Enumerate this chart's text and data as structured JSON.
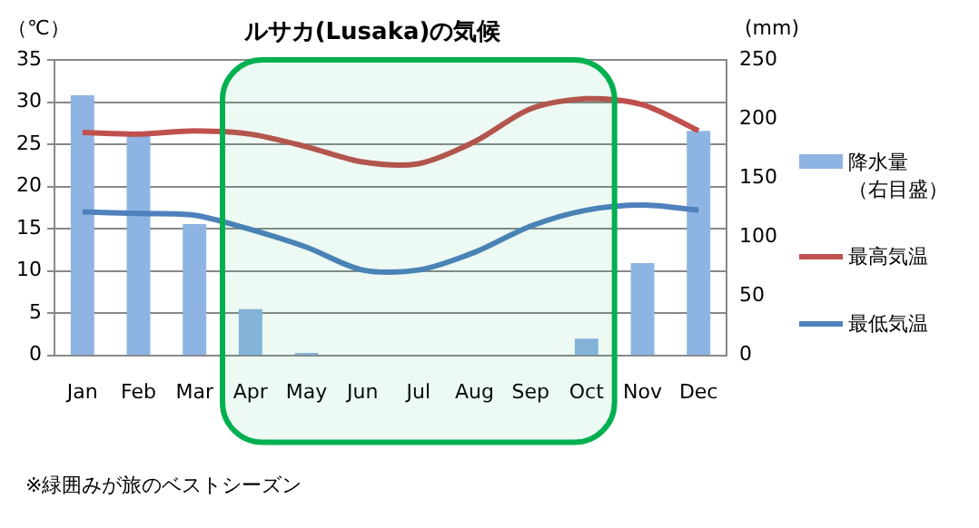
{
  "chart_data": {
    "type": "bar",
    "title": "ルサカ(Lusaka)の気候",
    "ylabel": "（℃）",
    "y2label": "(mm)",
    "categories": [
      "Jan",
      "Feb",
      "Mar",
      "Apr",
      "May",
      "Jun",
      "Jul",
      "Aug",
      "Sep",
      "Oct",
      "Nov",
      "Dec"
    ],
    "series": [
      {
        "name": "降水量（右目盛）",
        "axis": "y2",
        "color": "#8eb4e3",
        "values": [
          220,
          186,
          111,
          39,
          2,
          0,
          0,
          0,
          0,
          14,
          78,
          190
        ]
      },
      {
        "name": "最高気温",
        "type": "line",
        "color": "#c0504d",
        "values": [
          26.4,
          26.2,
          26.6,
          26.2,
          24.7,
          22.9,
          22.7,
          25.3,
          29.2,
          30.4,
          29.7,
          26.6
        ]
      },
      {
        "name": "最低気温",
        "type": "line",
        "color": "#4f81bd",
        "values": [
          17,
          16.8,
          16.6,
          14.9,
          12.8,
          10.1,
          10.1,
          12.2,
          15.3,
          17.2,
          17.8,
          17.2
        ]
      }
    ],
    "ylim": [
      0,
      35
    ],
    "yticks": [
      0,
      5,
      10,
      15,
      20,
      25,
      30,
      35
    ],
    "y2lim": [
      0,
      250
    ],
    "y2ticks": [
      0,
      50,
      100,
      150,
      200,
      250
    ],
    "grid": "y",
    "legend": "right",
    "marker": "none",
    "bands": [
      {
        "axis": "x",
        "from": "Apr",
        "to": "Oct",
        "color": "#00b050"
      }
    ],
    "annotations": [
      "※緑囲みが旅のベストシーズン"
    ]
  }
}
